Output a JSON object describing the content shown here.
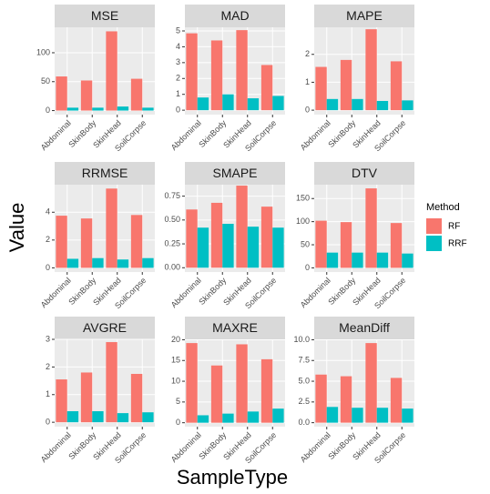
{
  "x_label": "SampleType",
  "y_label": "Value",
  "legend_title": "Method",
  "chart_data": [
    {
      "type": "bar",
      "title": "MSE",
      "categories": [
        "Abdominal",
        "SkinBody",
        "SkinHead",
        "SoilCorpse"
      ],
      "series": [
        {
          "name": "RF",
          "color": "#F8766D",
          "values": [
            59,
            52,
            137,
            55
          ]
        },
        {
          "name": "RRF",
          "color": "#00BFC4",
          "values": [
            5,
            5,
            7,
            5
          ]
        }
      ],
      "ylim": [
        -7,
        144
      ],
      "yticks": [
        0,
        50,
        100
      ]
    },
    {
      "type": "bar",
      "title": "MAD",
      "categories": [
        "Abdominal",
        "SkinBody",
        "SkinHead",
        "SoilCorpse"
      ],
      "series": [
        {
          "name": "RF",
          "color": "#F8766D",
          "values": [
            4.85,
            4.4,
            5.05,
            2.85
          ]
        },
        {
          "name": "RRF",
          "color": "#00BFC4",
          "values": [
            0.8,
            1.0,
            0.75,
            0.9
          ]
        }
      ],
      "ylim": [
        -0.28,
        5.23
      ],
      "yticks": [
        0,
        1,
        2,
        3,
        4,
        5
      ]
    },
    {
      "type": "bar",
      "title": "MAPE",
      "categories": [
        "Abdominal",
        "SkinBody",
        "SkinHead",
        "SoilCorpse"
      ],
      "series": [
        {
          "name": "RF",
          "color": "#F8766D",
          "values": [
            1.55,
            1.8,
            2.9,
            1.75
          ]
        },
        {
          "name": "RRF",
          "color": "#00BFC4",
          "values": [
            0.4,
            0.4,
            0.33,
            0.35
          ]
        }
      ],
      "ylim": [
        -0.16,
        2.97
      ],
      "yticks": [
        0,
        1,
        2
      ]
    },
    {
      "type": "bar",
      "title": "RRMSE",
      "categories": [
        "Abdominal",
        "SkinBody",
        "SkinHead",
        "SoilCorpse"
      ],
      "series": [
        {
          "name": "RF",
          "color": "#F8766D",
          "values": [
            3.75,
            3.55,
            5.7,
            3.8
          ]
        },
        {
          "name": "RRF",
          "color": "#00BFC4",
          "values": [
            0.65,
            0.7,
            0.6,
            0.7
          ]
        }
      ],
      "ylim": [
        -0.3,
        5.98
      ],
      "yticks": [
        0,
        2,
        4
      ]
    },
    {
      "type": "bar",
      "title": "SMAPE",
      "categories": [
        "Abdominal",
        "SkinBody",
        "SkinHead",
        "SoilCorpse"
      ],
      "series": [
        {
          "name": "RF",
          "color": "#F8766D",
          "values": [
            0.61,
            0.68,
            0.86,
            0.64
          ]
        },
        {
          "name": "RRF",
          "color": "#00BFC4",
          "values": [
            0.42,
            0.46,
            0.43,
            0.42
          ]
        }
      ],
      "ylim": [
        -0.045,
        0.87
      ],
      "yticks": [
        {
          "value": 0,
          "label": "0.00"
        },
        0.25,
        {
          "value": 0.5,
          "label": "0.50"
        },
        0.75
      ]
    },
    {
      "type": "bar",
      "title": "DTV",
      "categories": [
        "Abdominal",
        "SkinBody",
        "SkinHead",
        "SoilCorpse"
      ],
      "series": [
        {
          "name": "RF",
          "color": "#F8766D",
          "values": [
            102,
            99,
            172,
            97
          ]
        },
        {
          "name": "RRF",
          "color": "#00BFC4",
          "values": [
            33,
            33,
            33,
            31
          ]
        }
      ],
      "ylim": [
        -9,
        180
      ],
      "yticks": [
        0,
        50,
        100,
        150
      ]
    },
    {
      "type": "bar",
      "title": "AVGRE",
      "categories": [
        "Abdominal",
        "SkinBody",
        "SkinHead",
        "SoilCorpse"
      ],
      "series": [
        {
          "name": "RF",
          "color": "#F8766D",
          "values": [
            1.55,
            1.8,
            2.9,
            1.75
          ]
        },
        {
          "name": "RRF",
          "color": "#00BFC4",
          "values": [
            0.4,
            0.4,
            0.33,
            0.36
          ]
        }
      ],
      "ylim": [
        -0.16,
        3.0
      ],
      "yticks": [
        0,
        1,
        2,
        3
      ]
    },
    {
      "type": "bar",
      "title": "MAXRE",
      "categories": [
        "Abdominal",
        "SkinBody",
        "SkinHead",
        "SoilCorpse"
      ],
      "series": [
        {
          "name": "RF",
          "color": "#F8766D",
          "values": [
            19.2,
            13.8,
            18.9,
            15.3
          ]
        },
        {
          "name": "RRF",
          "color": "#00BFC4",
          "values": [
            1.8,
            2.2,
            2.7,
            3.4
          ]
        }
      ],
      "ylim": [
        -0.95,
        20.1
      ],
      "yticks": [
        0,
        5,
        10,
        15,
        20
      ]
    },
    {
      "type": "bar",
      "title": "MeanDiff",
      "categories": [
        "Abdominal",
        "SkinBody",
        "SkinHead",
        "SoilCorpse"
      ],
      "series": [
        {
          "name": "RF",
          "color": "#F8766D",
          "values": [
            5.8,
            5.6,
            9.6,
            5.4
          ]
        },
        {
          "name": "RRF",
          "color": "#00BFC4",
          "values": [
            1.9,
            1.8,
            1.8,
            1.7
          ]
        }
      ],
      "ylim": [
        -0.48,
        10.05
      ],
      "yticks": [
        {
          "value": 0,
          "label": "0.0"
        },
        2.5,
        {
          "value": 5,
          "label": "5.0"
        },
        7.5,
        {
          "value": 10,
          "label": "10.0"
        }
      ]
    }
  ]
}
